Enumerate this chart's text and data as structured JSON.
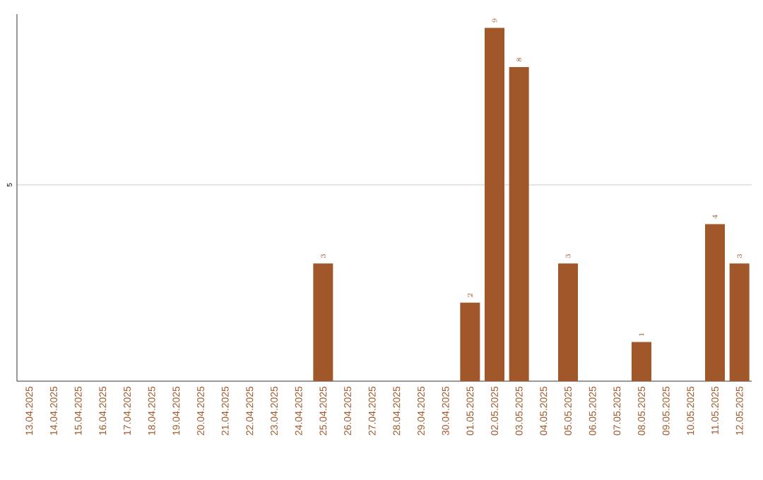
{
  "chart_data": {
    "type": "bar",
    "categories": [
      "13.04.2025",
      "14.04.2025",
      "15.04.2025",
      "16.04.2025",
      "17.04.2025",
      "18.04.2025",
      "19.04.2025",
      "20.04.2025",
      "21.04.2025",
      "22.04.2025",
      "23.04.2025",
      "24.04.2025",
      "25.04.2025",
      "26.04.2025",
      "27.04.2025",
      "28.04.2025",
      "29.04.2025",
      "30.04.2025",
      "01.05.2025",
      "02.05.2025",
      "03.05.2025",
      "04.05.2025",
      "05.05.2025",
      "06.05.2025",
      "07.05.2025",
      "08.05.2025",
      "09.05.2025",
      "10.05.2025",
      "11.05.2025",
      "12.05.2025"
    ],
    "values": [
      null,
      null,
      null,
      null,
      null,
      null,
      null,
      null,
      null,
      null,
      null,
      null,
      3,
      null,
      null,
      null,
      null,
      null,
      2,
      9,
      8,
      null,
      3,
      null,
      null,
      1,
      null,
      null,
      4,
      3
    ],
    "color": "#a0582a",
    "ylim": [
      0,
      9.35
    ],
    "yticks": [
      5
    ],
    "grid": "y",
    "data_labels": true
  }
}
